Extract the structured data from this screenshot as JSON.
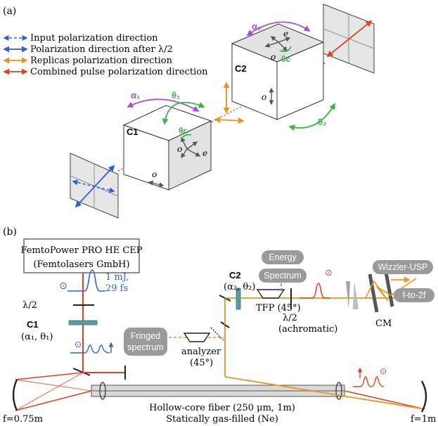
{
  "panel_a": {
    "label": "(a)",
    "legend": [
      {
        "text": "Input polarization direction",
        "color": "#2b5fe0",
        "dashed": true
      },
      {
        "text": "Polarization direction after λ/2",
        "color": "#2b5fe0",
        "dashed": false
      },
      {
        "text": "Replicas polarization direction",
        "color": "#f0921e",
        "dashed": false
      },
      {
        "text": "Combined pulse polarization direction",
        "color": "#e8401c",
        "dashed": false
      }
    ],
    "crystal1": {
      "name": "C1",
      "alpha": "α₁",
      "theta": "θ₁",
      "theta_c": "θc",
      "o": "o",
      "e": "e",
      "o_side": "o"
    },
    "crystal2": {
      "name": "C2",
      "alpha": "α₂",
      "theta": "θ₂",
      "theta_c": "θc",
      "o": "o",
      "e": "e",
      "o_side": "o"
    },
    "colors": {
      "purple": "#a84fd8",
      "green": "#3cb548",
      "orange": "#f0921e",
      "red": "#e8401c",
      "blue": "#2b5fe0"
    }
  },
  "panel_b": {
    "label": "(b)",
    "laser": {
      "line1": "FemtoPower PRO HE CEP",
      "line2": "(Femtolasers GmbH)"
    },
    "pulse_label": {
      "energy": "1 mJ,",
      "duration": "29 fs"
    },
    "halfwave": "λ/2",
    "c1": {
      "name": "C1",
      "params": "(α₁, θ₁)"
    },
    "c2": {
      "name": "C2",
      "params": "(α₂, θ₂)"
    },
    "tfp": "TFP (45°)",
    "halfwave_achromatic": {
      "line1": "λ/2",
      "line2": "(achromatic)"
    },
    "analyzer": {
      "line1": "analyzer",
      "line2": "(45°)"
    },
    "pills": {
      "energy": "Energy",
      "spectrum": "Spectrum",
      "fringed1": "Fringed",
      "fringed2": "spectrum",
      "wizzler": "Wizzler-USP",
      "f2f": "f-to-2f"
    },
    "cm": "CM",
    "mirror_left": "f=0.75m",
    "mirror_right": "f=1m",
    "fiber": {
      "line1": "Hollow-core fiber (250 μm, 1m)",
      "line2": "Statically gas-filled (Ne)"
    }
  }
}
